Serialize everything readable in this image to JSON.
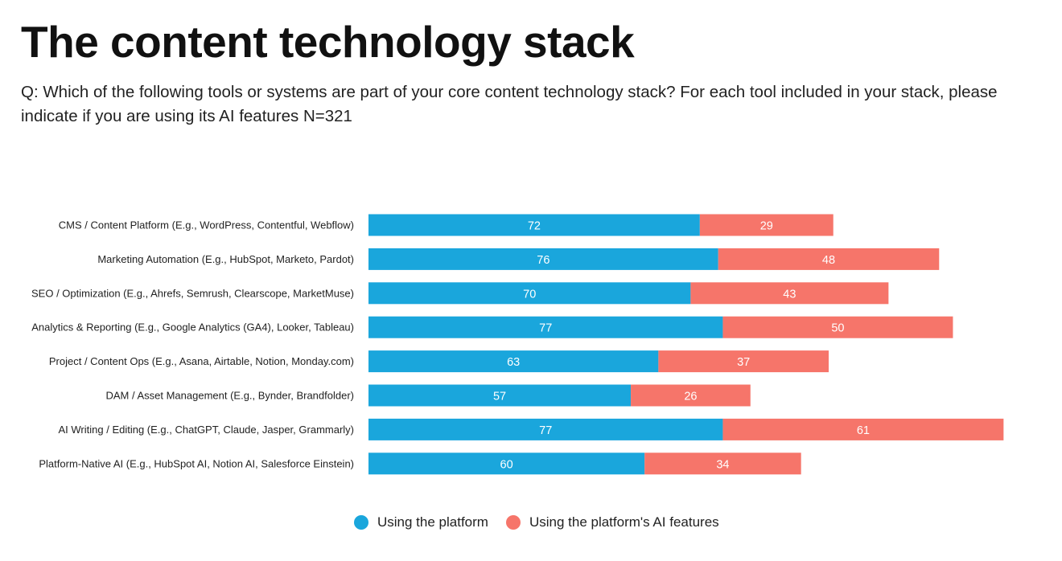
{
  "header": {
    "title": "The content technology stack",
    "subtitle": "Q: Which of the following tools or systems are part of your core content technology stack? For each tool included in your stack, please indicate if you are using its AI features N=321"
  },
  "chart_data": {
    "type": "bar",
    "orientation": "horizontal",
    "stacked": true,
    "categories": [
      "CMS / Content Platform (E.g., WordPress, Contentful, Webflow)",
      "Marketing Automation (E.g., HubSpot, Marketo, Pardot)",
      "SEO / Optimization (E.g., Ahrefs, Semrush, Clearscope, MarketMuse)",
      "Analytics & Reporting (E.g., Google Analytics (GA4), Looker, Tableau)",
      "Project / Content Ops (E.g., Asana, Airtable, Notion, Monday.com)",
      "DAM / Asset Management (E.g., Bynder, Brandfolder)",
      "AI Writing / Editing (E.g., ChatGPT, Claude, Jasper, Grammarly)",
      "Platform-Native AI (E.g., HubSpot AI, Notion AI, Salesforce Einstein)"
    ],
    "series": [
      {
        "name": "Using the platform",
        "color": "#1aa6dc",
        "values": [
          72,
          76,
          70,
          77,
          63,
          57,
          77,
          60
        ]
      },
      {
        "name": "Using the platform's AI features",
        "color": "#f6756a",
        "values": [
          29,
          48,
          43,
          50,
          37,
          26,
          61,
          34
        ]
      }
    ],
    "data_labels": true,
    "grid": false,
    "legend_position": "bottom"
  }
}
